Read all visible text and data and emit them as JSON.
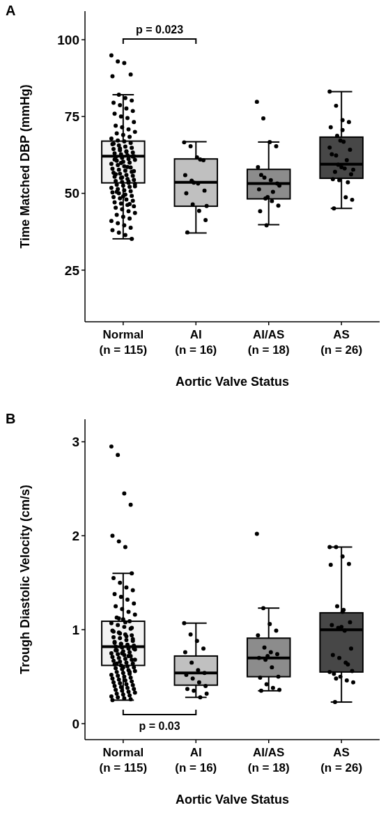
{
  "chart_data": [
    {
      "type": "box",
      "title": "A",
      "xlabel": "Aortic Valve Status",
      "ylabel": "Time Matched DBP (mmHg)",
      "categories": [
        "Normal\n(n = 115)",
        "AI\n(n = 16)",
        "AI/AS\n(n = 18)",
        "AS\n(n = 26)"
      ],
      "colors": [
        "#f2f2f2",
        "#c0c0c0",
        "#8c8c8c",
        "#474747"
      ],
      "boxes": [
        {
          "low": 35.2,
          "q1": 53.4,
          "median": 62.1,
          "q3": 67.0,
          "high": 82.1
        },
        {
          "low": 37.1,
          "q1": 45.8,
          "median": 53.6,
          "q3": 61.2,
          "high": 66.8
        },
        {
          "low": 39.8,
          "q1": 48.2,
          "median": 53.2,
          "q3": 57.8,
          "high": 66.7
        },
        {
          "low": 45.1,
          "q1": 54.9,
          "median": 59.5,
          "q3": 68.3,
          "high": 83.1
        }
      ],
      "ylim": [
        8.2,
        109.3
      ],
      "yticks": [
        25,
        50,
        75,
        100
      ],
      "marker": "circle",
      "annotations": [
        "p = 0.023"
      ],
      "series": [
        {
          "type": "scatter",
          "color": "#000000",
          "x": [
            "Normal\n(n = 115)",
            "Normal\n(n = 115)",
            "Normal\n(n = 115)",
            "Normal\n(n = 115)",
            "Normal\n(n = 115)",
            "Normal\n(n = 115)",
            "Normal\n(n = 115)",
            "Normal\n(n = 115)",
            "Normal\n(n = 115)",
            "Normal\n(n = 115)",
            "Normal\n(n = 115)",
            "Normal\n(n = 115)",
            "Normal\n(n = 115)",
            "Normal\n(n = 115)",
            "Normal\n(n = 115)",
            "Normal\n(n = 115)",
            "Normal\n(n = 115)",
            "Normal\n(n = 115)",
            "Normal\n(n = 115)",
            "Normal\n(n = 115)",
            "Normal\n(n = 115)",
            "Normal\n(n = 115)",
            "Normal\n(n = 115)",
            "Normal\n(n = 115)",
            "Normal\n(n = 115)",
            "Normal\n(n = 115)",
            "Normal\n(n = 115)",
            "Normal\n(n = 115)",
            "Normal\n(n = 115)",
            "Normal\n(n = 115)",
            "Normal\n(n = 115)",
            "Normal\n(n = 115)",
            "Normal\n(n = 115)",
            "Normal\n(n = 115)",
            "Normal\n(n = 115)",
            "Normal\n(n = 115)",
            "Normal\n(n = 115)",
            "Normal\n(n = 115)",
            "Normal\n(n = 115)",
            "Normal\n(n = 115)",
            "Normal\n(n = 115)",
            "Normal\n(n = 115)",
            "Normal\n(n = 115)",
            "Normal\n(n = 115)",
            "Normal\n(n = 115)",
            "Normal\n(n = 115)",
            "Normal\n(n = 115)",
            "Normal\n(n = 115)",
            "Normal\n(n = 115)",
            "Normal\n(n = 115)",
            "Normal\n(n = 115)",
            "Normal\n(n = 115)",
            "Normal\n(n = 115)",
            "Normal\n(n = 115)",
            "Normal\n(n = 115)",
            "Normal\n(n = 115)",
            "Normal\n(n = 115)",
            "Normal\n(n = 115)",
            "Normal\n(n = 115)",
            "Normal\n(n = 115)",
            "Normal\n(n = 115)",
            "Normal\n(n = 115)",
            "Normal\n(n = 115)",
            "Normal\n(n = 115)",
            "Normal\n(n = 115)",
            "Normal\n(n = 115)",
            "Normal\n(n = 115)",
            "Normal\n(n = 115)",
            "Normal\n(n = 115)",
            "Normal\n(n = 115)",
            "Normal\n(n = 115)",
            "Normal\n(n = 115)",
            "Normal\n(n = 115)",
            "Normal\n(n = 115)",
            "Normal\n(n = 115)",
            "Normal\n(n = 115)",
            "Normal\n(n = 115)",
            "Normal\n(n = 115)",
            "Normal\n(n = 115)",
            "Normal\n(n = 115)",
            "Normal\n(n = 115)",
            "Normal\n(n = 115)",
            "Normal\n(n = 115)",
            "Normal\n(n = 115)",
            "Normal\n(n = 115)",
            "Normal\n(n = 115)",
            "Normal\n(n = 115)",
            "Normal\n(n = 115)",
            "Normal\n(n = 115)",
            "Normal\n(n = 115)",
            "Normal\n(n = 115)",
            "Normal\n(n = 115)",
            "Normal\n(n = 115)",
            "Normal\n(n = 115)",
            "Normal\n(n = 115)",
            "Normal\n(n = 115)",
            "Normal\n(n = 115)",
            "Normal\n(n = 115)",
            "Normal\n(n = 115)",
            "Normal\n(n = 115)",
            "Normal\n(n = 115)",
            "Normal\n(n = 115)",
            "Normal\n(n = 115)",
            "Normal\n(n = 115)",
            "Normal\n(n = 115)",
            "Normal\n(n = 115)",
            "Normal\n(n = 115)",
            "Normal\n(n = 115)",
            "Normal\n(n = 115)",
            "Normal\n(n = 115)",
            "Normal\n(n = 115)",
            "Normal\n(n = 115)",
            "Normal\n(n = 115)",
            "Normal\n(n = 115)",
            "Normal\n(n = 115)",
            "AI\n(n = 16)",
            "AI\n(n = 16)",
            "AI\n(n = 16)",
            "AI\n(n = 16)",
            "AI\n(n = 16)",
            "AI\n(n = 16)",
            "AI\n(n = 16)",
            "AI\n(n = 16)",
            "AI\n(n = 16)",
            "AI\n(n = 16)",
            "AI\n(n = 16)",
            "AI\n(n = 16)",
            "AI\n(n = 16)",
            "AI\n(n = 16)",
            "AI\n(n = 16)",
            "AI\n(n = 16)",
            "AI/AS\n(n = 18)",
            "AI/AS\n(n = 18)",
            "AI/AS\n(n = 18)",
            "AI/AS\n(n = 18)",
            "AI/AS\n(n = 18)",
            "AI/AS\n(n = 18)",
            "AI/AS\n(n = 18)",
            "AI/AS\n(n = 18)",
            "AI/AS\n(n = 18)",
            "AI/AS\n(n = 18)",
            "AI/AS\n(n = 18)",
            "AI/AS\n(n = 18)",
            "AI/AS\n(n = 18)",
            "AI/AS\n(n = 18)",
            "AI/AS\n(n = 18)",
            "AI/AS\n(n = 18)",
            "AI/AS\n(n = 18)",
            "AI/AS\n(n = 18)",
            "AS\n(n = 26)",
            "AS\n(n = 26)",
            "AS\n(n = 26)",
            "AS\n(n = 26)",
            "AS\n(n = 26)",
            "AS\n(n = 26)",
            "AS\n(n = 26)",
            "AS\n(n = 26)",
            "AS\n(n = 26)",
            "AS\n(n = 26)",
            "AS\n(n = 26)",
            "AS\n(n = 26)",
            "AS\n(n = 26)",
            "AS\n(n = 26)",
            "AS\n(n = 26)",
            "AS\n(n = 26)",
            "AS\n(n = 26)",
            "AS\n(n = 26)",
            "AS\n(n = 26)",
            "AS\n(n = 26)",
            "AS\n(n = 26)",
            "AS\n(n = 26)",
            "AS\n(n = 26)",
            "AS\n(n = 26)",
            "AS\n(n = 26)",
            "AS\n(n = 26)"
          ],
          "values": [
            94.9,
            92.9,
            92.4,
            88.7,
            88.1,
            82.1,
            81.0,
            80.2,
            79.5,
            78.7,
            77.6,
            76.8,
            75.9,
            75.0,
            74.5,
            73.2,
            72.0,
            71.5,
            70.8,
            70.0,
            69.5,
            69.0,
            68.4,
            67.8,
            67.2,
            66.9,
            66.4,
            66.0,
            65.6,
            65.2,
            64.8,
            64.4,
            64.0,
            63.7,
            63.3,
            63.0,
            62.7,
            62.4,
            62.1,
            61.8,
            61.5,
            61.2,
            60.9,
            60.6,
            60.3,
            60.0,
            59.6,
            59.2,
            58.8,
            58.4,
            58.0,
            57.7,
            57.4,
            57.0,
            56.7,
            56.4,
            56.0,
            55.7,
            55.4,
            55.0,
            54.7,
            54.4,
            54.0,
            53.7,
            53.4,
            53.1,
            52.8,
            52.5,
            52.1,
            51.8,
            51.4,
            51.0,
            50.7,
            50.3,
            50.0,
            49.6,
            49.2,
            48.8,
            48.4,
            48.0,
            47.6,
            47.1,
            46.7,
            46.2,
            45.8,
            45.3,
            44.8,
            44.2,
            43.6,
            43.0,
            42.4,
            41.8,
            41.0,
            40.3,
            39.6,
            38.8,
            38.0,
            37.2,
            36.4,
            35.2,
            66.2,
            64.6,
            63.5,
            62.0,
            61.0,
            59.9,
            58.6,
            57.2,
            56.2,
            55.2,
            53.9,
            52.3,
            50.5,
            49.0,
            46.5,
            66.6,
            65.3,
            61.7,
            60.8,
            55.9,
            54.1,
            53.2,
            50.9,
            50.0,
            46.4,
            44.3,
            41.3,
            37.3,
            53.5,
            61.0,
            45.9,
            79.8,
            74.4,
            66.7,
            65.3,
            58.5,
            55.1,
            54.3,
            53.2,
            51.3,
            48.3,
            47.5,
            46.0,
            44.2,
            39.6,
            50.5,
            52.5,
            56.0,
            48.8,
            83.1,
            78.5,
            73.8,
            73.2,
            71.5,
            68.7,
            66.8,
            64.2,
            62.7,
            59.3,
            58.1,
            56.2,
            54.6,
            54.3,
            48.7,
            47.9,
            45.1,
            67.2,
            60.8,
            57.7,
            57.0,
            58.5,
            53.6,
            64.9,
            62.3,
            70.6
          ]
        }
      ]
    },
    {
      "type": "box",
      "title": "B",
      "xlabel": "Aortic Valve Status",
      "ylabel": "Trough Diastolic Velocity (cm/s)",
      "categories": [
        "Normal\n(n = 115)",
        "AI\n(n = 16)",
        "AI/AS\n(n = 18)",
        "AS\n(n = 26)"
      ],
      "colors": [
        "#f2f2f2",
        "#c0c0c0",
        "#8c8c8c",
        "#474747"
      ],
      "boxes": [
        {
          "low": 0.25,
          "q1": 0.62,
          "median": 0.82,
          "q3": 1.09,
          "high": 1.6
        },
        {
          "low": 0.28,
          "q1": 0.41,
          "median": 0.54,
          "q3": 0.72,
          "high": 1.07
        },
        {
          "low": 0.35,
          "q1": 0.5,
          "median": 0.7,
          "q3": 0.91,
          "high": 1.23
        },
        {
          "low": 0.23,
          "q1": 0.55,
          "median": 1.0,
          "q3": 1.18,
          "high": 1.88
        }
      ],
      "ylim": [
        -0.17,
        3.24
      ],
      "yticks": [
        0,
        1,
        2,
        3
      ],
      "marker": "circle",
      "annotations": [
        "p = 0.03"
      ],
      "series": [
        {
          "type": "scatter",
          "color": "#000000",
          "x": [
            "Normal\n(n = 115)",
            "Normal\n(n = 115)",
            "Normal\n(n = 115)",
            "Normal\n(n = 115)",
            "Normal\n(n = 115)",
            "Normal\n(n = 115)",
            "Normal\n(n = 115)",
            "Normal\n(n = 115)",
            "Normal\n(n = 115)",
            "Normal\n(n = 115)",
            "Normal\n(n = 115)",
            "Normal\n(n = 115)",
            "Normal\n(n = 115)",
            "Normal\n(n = 115)",
            "Normal\n(n = 115)",
            "Normal\n(n = 115)",
            "Normal\n(n = 115)",
            "Normal\n(n = 115)",
            "Normal\n(n = 115)",
            "Normal\n(n = 115)",
            "Normal\n(n = 115)",
            "Normal\n(n = 115)",
            "Normal\n(n = 115)",
            "Normal\n(n = 115)",
            "Normal\n(n = 115)",
            "Normal\n(n = 115)",
            "Normal\n(n = 115)",
            "Normal\n(n = 115)",
            "Normal\n(n = 115)",
            "Normal\n(n = 115)",
            "Normal\n(n = 115)",
            "Normal\n(n = 115)",
            "Normal\n(n = 115)",
            "Normal\n(n = 115)",
            "Normal\n(n = 115)",
            "Normal\n(n = 115)",
            "Normal\n(n = 115)",
            "Normal\n(n = 115)",
            "Normal\n(n = 115)",
            "Normal\n(n = 115)",
            "Normal\n(n = 115)",
            "Normal\n(n = 115)",
            "Normal\n(n = 115)",
            "Normal\n(n = 115)",
            "Normal\n(n = 115)",
            "Normal\n(n = 115)",
            "Normal\n(n = 115)",
            "Normal\n(n = 115)",
            "Normal\n(n = 115)",
            "Normal\n(n = 115)",
            "Normal\n(n = 115)",
            "Normal\n(n = 115)",
            "Normal\n(n = 115)",
            "Normal\n(n = 115)",
            "Normal\n(n = 115)",
            "Normal\n(n = 115)",
            "Normal\n(n = 115)",
            "Normal\n(n = 115)",
            "Normal\n(n = 115)",
            "Normal\n(n = 115)",
            "Normal\n(n = 115)",
            "Normal\n(n = 115)",
            "Normal\n(n = 115)",
            "Normal\n(n = 115)",
            "Normal\n(n = 115)",
            "Normal\n(n = 115)",
            "Normal\n(n = 115)",
            "Normal\n(n = 115)",
            "Normal\n(n = 115)",
            "Normal\n(n = 115)",
            "Normal\n(n = 115)",
            "Normal\n(n = 115)",
            "Normal\n(n = 115)",
            "Normal\n(n = 115)",
            "Normal\n(n = 115)",
            "Normal\n(n = 115)",
            "Normal\n(n = 115)",
            "Normal\n(n = 115)",
            "Normal\n(n = 115)",
            "Normal\n(n = 115)",
            "Normal\n(n = 115)",
            "Normal\n(n = 115)",
            "Normal\n(n = 115)",
            "Normal\n(n = 115)",
            "Normal\n(n = 115)",
            "Normal\n(n = 115)",
            "Normal\n(n = 115)",
            "Normal\n(n = 115)",
            "Normal\n(n = 115)",
            "Normal\n(n = 115)",
            "Normal\n(n = 115)",
            "Normal\n(n = 115)",
            "Normal\n(n = 115)",
            "Normal\n(n = 115)",
            "Normal\n(n = 115)",
            "Normal\n(n = 115)",
            "Normal\n(n = 115)",
            "Normal\n(n = 115)",
            "Normal\n(n = 115)",
            "Normal\n(n = 115)",
            "Normal\n(n = 115)",
            "Normal\n(n = 115)",
            "Normal\n(n = 115)",
            "Normal\n(n = 115)",
            "Normal\n(n = 115)",
            "Normal\n(n = 115)",
            "Normal\n(n = 115)",
            "Normal\n(n = 115)",
            "Normal\n(n = 115)",
            "Normal\n(n = 115)",
            "Normal\n(n = 115)",
            "Normal\n(n = 115)",
            "Normal\n(n = 115)",
            "Normal\n(n = 115)",
            "Normal\n(n = 115)",
            "AI\n(n = 16)",
            "AI\n(n = 16)",
            "AI\n(n = 16)",
            "AI\n(n = 16)",
            "AI\n(n = 16)",
            "AI\n(n = 16)",
            "AI\n(n = 16)",
            "AI\n(n = 16)",
            "AI\n(n = 16)",
            "AI\n(n = 16)",
            "AI\n(n = 16)",
            "AI\n(n = 16)",
            "AI\n(n = 16)",
            "AI\n(n = 16)",
            "AI\n(n = 16)",
            "AI\n(n = 16)",
            "AI/AS\n(n = 18)",
            "AI/AS\n(n = 18)",
            "AI/AS\n(n = 18)",
            "AI/AS\n(n = 18)",
            "AI/AS\n(n = 18)",
            "AI/AS\n(n = 18)",
            "AI/AS\n(n = 18)",
            "AI/AS\n(n = 18)",
            "AI/AS\n(n = 18)",
            "AI/AS\n(n = 18)",
            "AI/AS\n(n = 18)",
            "AI/AS\n(n = 18)",
            "AI/AS\n(n = 18)",
            "AI/AS\n(n = 18)",
            "AI/AS\n(n = 18)",
            "AI/AS\n(n = 18)",
            "AI/AS\n(n = 18)",
            "AI/AS\n(n = 18)",
            "AS\n(n = 26)",
            "AS\n(n = 26)",
            "AS\n(n = 26)",
            "AS\n(n = 26)",
            "AS\n(n = 26)",
            "AS\n(n = 26)",
            "AS\n(n = 26)",
            "AS\n(n = 26)",
            "AS\n(n = 26)",
            "AS\n(n = 26)",
            "AS\n(n = 26)",
            "AS\n(n = 26)",
            "AS\n(n = 26)",
            "AS\n(n = 26)",
            "AS\n(n = 26)",
            "AS\n(n = 26)",
            "AS\n(n = 26)",
            "AS\n(n = 26)",
            "AS\n(n = 26)",
            "AS\n(n = 26)",
            "AS\n(n = 26)",
            "AS\n(n = 26)",
            "AS\n(n = 26)",
            "AS\n(n = 26)",
            "AS\n(n = 26)",
            "AS\n(n = 26)"
          ],
          "values": [
            2.95,
            2.86,
            2.45,
            2.33,
            2.0,
            1.94,
            1.88,
            1.6,
            1.55,
            1.5,
            1.45,
            1.42,
            1.38,
            1.35,
            1.32,
            1.28,
            1.25,
            1.22,
            1.19,
            1.16,
            1.13,
            1.11,
            1.09,
            1.07,
            1.05,
            1.03,
            1.01,
            0.99,
            0.97,
            0.95,
            0.94,
            0.92,
            0.91,
            0.89,
            0.88,
            0.86,
            0.85,
            0.84,
            0.83,
            0.82,
            0.81,
            0.8,
            0.79,
            0.78,
            0.77,
            0.76,
            0.75,
            0.74,
            0.73,
            0.72,
            0.71,
            0.7,
            0.69,
            0.68,
            0.67,
            0.66,
            0.65,
            0.64,
            0.63,
            0.62,
            0.61,
            0.6,
            0.59,
            0.58,
            0.57,
            0.56,
            0.55,
            0.54,
            0.53,
            0.52,
            0.51,
            0.5,
            0.49,
            0.48,
            0.47,
            0.46,
            0.45,
            0.44,
            0.43,
            0.42,
            0.41,
            0.4,
            0.39,
            0.38,
            0.37,
            0.36,
            0.35,
            0.34,
            0.33,
            0.32,
            0.31,
            0.3,
            0.29,
            0.28,
            0.27,
            0.26,
            0.25,
            1.12,
            1.08,
            1.02,
            0.98,
            0.96,
            0.93,
            0.9,
            0.87,
            0.85,
            0.83,
            0.8,
            0.78,
            0.75,
            0.72,
            0.68,
            0.64,
            0.6,
            0.55,
            1.07,
            0.95,
            0.88,
            0.8,
            0.76,
            0.65,
            0.57,
            0.54,
            0.52,
            0.48,
            0.44,
            0.4,
            0.37,
            0.35,
            0.28,
            0.32,
            2.02,
            1.23,
            1.06,
            0.99,
            0.94,
            0.81,
            0.76,
            0.74,
            0.7,
            0.68,
            0.6,
            0.5,
            0.49,
            0.42,
            0.38,
            0.36,
            0.35,
            0.72,
            1.88,
            1.88,
            1.78,
            1.7,
            1.69,
            1.25,
            1.21,
            1.08,
            1.05,
            1.02,
            0.99,
            0.8,
            0.73,
            0.7,
            0.65,
            0.56,
            0.53,
            0.5,
            0.46,
            0.44,
            0.23,
            1.03,
            0.63,
            0.55,
            0.48,
            1.19
          ]
        }
      ]
    }
  ]
}
